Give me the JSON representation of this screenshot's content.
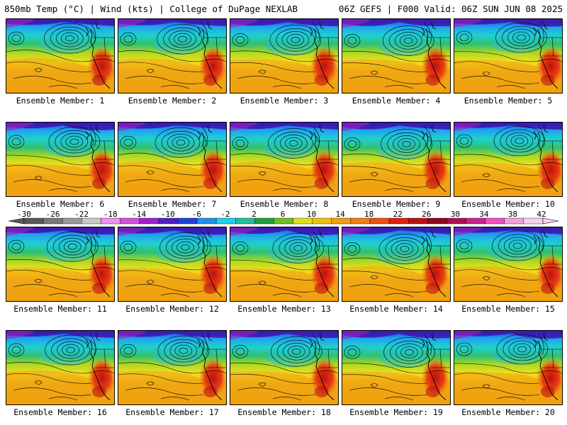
{
  "header": {
    "left_title": "850mb Temp (°C) | Wind (kts) | College of DuPage NEXLAB",
    "right_title": "06Z GEFS | F000 Valid: 06Z SUN JUN 08 2025"
  },
  "panels": [
    {
      "caption": "Ensemble Member: 1"
    },
    {
      "caption": "Ensemble Member: 2"
    },
    {
      "caption": "Ensemble Member: 3"
    },
    {
      "caption": "Ensemble Member: 4"
    },
    {
      "caption": "Ensemble Member: 5"
    },
    {
      "caption": "Ensemble Member: 6"
    },
    {
      "caption": "Ensemble Member: 7"
    },
    {
      "caption": "Ensemble Member: 8"
    },
    {
      "caption": "Ensemble Member: 9"
    },
    {
      "caption": "Ensemble Member: 10"
    },
    {
      "caption": "Ensemble Member: 11"
    },
    {
      "caption": "Ensemble Member: 12"
    },
    {
      "caption": "Ensemble Member: 13"
    },
    {
      "caption": "Ensemble Member: 14"
    },
    {
      "caption": "Ensemble Member: 15"
    },
    {
      "caption": "Ensemble Member: 16"
    },
    {
      "caption": "Ensemble Member: 17"
    },
    {
      "caption": "Ensemble Member: 18"
    },
    {
      "caption": "Ensemble Member: 19"
    },
    {
      "caption": "Ensemble Member: 20"
    }
  ],
  "colorbar": {
    "labels": [
      "-30",
      "-26",
      "-22",
      "-18",
      "-14",
      "-10",
      "-6",
      "-2",
      "2",
      "6",
      "10",
      "14",
      "18",
      "22",
      "26",
      "30",
      "34",
      "38",
      "42"
    ],
    "colors": [
      "#5a5a5a",
      "#7a7a7a",
      "#9a9a9a",
      "#c8c8c8",
      "#f090f0",
      "#d050e0",
      "#a020d0",
      "#5020c0",
      "#2040e0",
      "#2090f0",
      "#20d0f0",
      "#20c0a0",
      "#20a040",
      "#70c020",
      "#e0e020",
      "#f0c010",
      "#f0a010",
      "#f08010",
      "#f05010",
      "#e02010",
      "#c01010",
      "#900820",
      "#b01050",
      "#d02090",
      "#f050c0",
      "#f0a0e0",
      "#f8d0f0"
    ]
  }
}
